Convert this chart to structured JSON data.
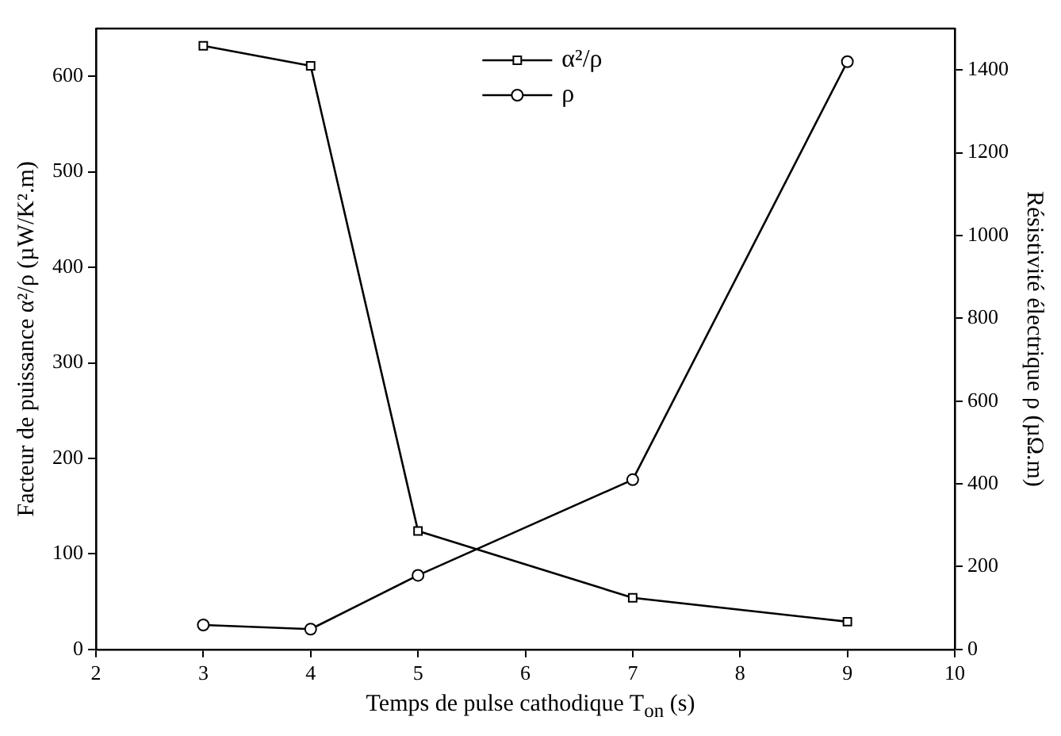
{
  "chart_data": {
    "type": "line",
    "xlabel": "Temps de pulse cathodique T$_{on}$ (s)",
    "ylabel": "Facteur de puissance α²/ρ (µW/K².m)",
    "y2label": "Résistivité électrique ρ (µΩ.m)",
    "x": [
      3,
      4,
      5,
      7,
      9
    ],
    "xlim": [
      2,
      10
    ],
    "xticks": [
      2,
      3,
      4,
      5,
      6,
      7,
      8,
      9,
      10
    ],
    "ylim": [
      0,
      650
    ],
    "yticks": [
      0,
      100,
      200,
      300,
      400,
      500,
      600
    ],
    "y2lim": [
      0,
      1500
    ],
    "y2ticks": [
      0,
      200,
      400,
      600,
      800,
      1000,
      1200,
      1400
    ],
    "series": [
      {
        "name": "α²/ρ",
        "color": "#000000",
        "values": [
          632,
          611,
          124,
          54,
          29
        ],
        "marker": "square"
      },
      {
        "name": "ρ",
        "color": "#000000",
        "values": [
          59,
          49,
          179,
          410,
          1420
        ],
        "axis": "y2",
        "marker": "circle"
      }
    ],
    "grid": false,
    "legend": "top",
    "line_style": "solid"
  }
}
